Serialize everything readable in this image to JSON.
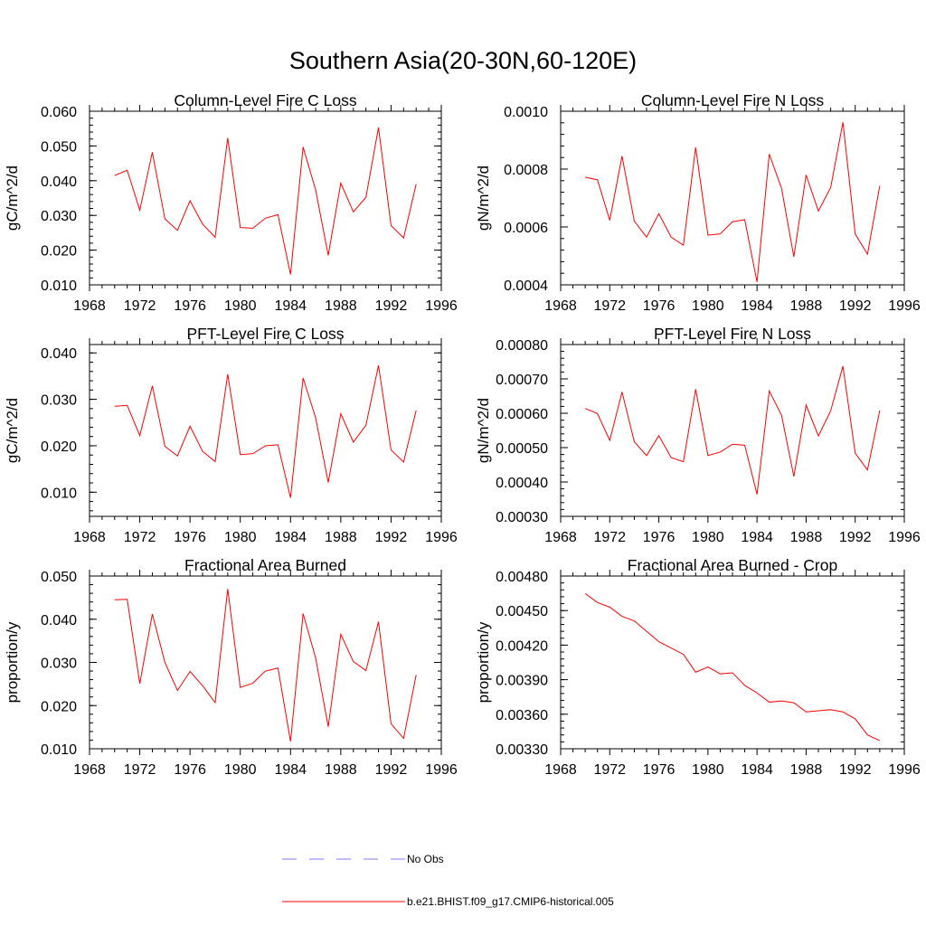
{
  "title": "Southern Asia(20-30N,60-120E)",
  "colors": {
    "series": "#ff0000",
    "obs": "#7c7cff",
    "axis": "#000000"
  },
  "legend": {
    "entries": [
      {
        "label": "No Obs",
        "style": "dashed",
        "color": "#7c7cff"
      },
      {
        "label": "b.e21.BHIST.f09_g17.CMIP6-historical.005",
        "style": "solid",
        "color": "#ff0000"
      }
    ],
    "position": "bottom-center"
  },
  "chart_data": [
    {
      "type": "line",
      "title": "Column-Level Fire C Loss",
      "ylabel": "gC/m^2/d",
      "xlabel": "",
      "xlim": [
        1968,
        1996
      ],
      "ylim": [
        0.01,
        0.06
      ],
      "x_ticks": [
        "1968",
        "1972",
        "1976",
        "1980",
        "1984",
        "1988",
        "1992",
        "1996"
      ],
      "y_ticks": [
        "0.010",
        "0.020",
        "0.030",
        "0.040",
        "0.050",
        "0.060"
      ],
      "series": [
        {
          "name": "b.e21.BHIST.f09_g17.CMIP6-historical.005",
          "x": [
            1970,
            1971,
            1972,
            1973,
            1974,
            1975,
            1976,
            1977,
            1978,
            1979,
            1980,
            1981,
            1982,
            1983,
            1984,
            1985,
            1986,
            1987,
            1988,
            1989,
            1990,
            1991,
            1992,
            1993,
            1994
          ],
          "values": [
            0.0415,
            0.043,
            0.0315,
            0.0482,
            0.029,
            0.0257,
            0.0342,
            0.0275,
            0.0237,
            0.0523,
            0.0265,
            0.0263,
            0.0292,
            0.0302,
            0.013,
            0.0497,
            0.0373,
            0.0185,
            0.0393,
            0.031,
            0.0352,
            0.0553,
            0.0271,
            0.0235,
            0.039
          ]
        }
      ]
    },
    {
      "type": "line",
      "title": "Column-Level Fire N Loss",
      "ylabel": "gN/m^2/d",
      "xlabel": "",
      "xlim": [
        1968,
        1996
      ],
      "ylim": [
        0.0004,
        0.001
      ],
      "x_ticks": [
        "1968",
        "1972",
        "1976",
        "1980",
        "1984",
        "1988",
        "1992",
        "1996"
      ],
      "y_ticks": [
        "0.0004",
        "0.0006",
        "0.0008",
        "0.0010"
      ],
      "series": [
        {
          "name": "b.e21.BHIST.f09_g17.CMIP6-historical.005",
          "x": [
            1970,
            1971,
            1972,
            1973,
            1974,
            1975,
            1976,
            1977,
            1978,
            1979,
            1980,
            1981,
            1982,
            1983,
            1984,
            1985,
            1986,
            1987,
            1988,
            1989,
            1990,
            1991,
            1992,
            1993,
            1994
          ],
          "values": [
            0.000772,
            0.000763,
            0.000623,
            0.000845,
            0.00062,
            0.000565,
            0.000646,
            0.000565,
            0.000537,
            0.000875,
            0.000572,
            0.000576,
            0.000618,
            0.000625,
            0.00041,
            0.000852,
            0.000733,
            0.000497,
            0.00078,
            0.000655,
            0.000736,
            0.000962,
            0.000576,
            0.000506,
            0.000742
          ]
        }
      ]
    },
    {
      "type": "line",
      "title": "PFT-Level Fire C Loss",
      "ylabel": "gC/m^2/d",
      "xlabel": "",
      "xlim": [
        1968,
        1996
      ],
      "ylim": [
        0.0048,
        0.0418
      ],
      "x_ticks": [
        "1968",
        "1972",
        "1976",
        "1980",
        "1984",
        "1988",
        "1992",
        "1996"
      ],
      "y_ticks": [
        "0.010",
        "0.020",
        "0.030",
        "0.040"
      ],
      "series": [
        {
          "name": "b.e21.BHIST.f09_g17.CMIP6-historical.005",
          "x": [
            1970,
            1971,
            1972,
            1973,
            1974,
            1975,
            1976,
            1977,
            1978,
            1979,
            1980,
            1981,
            1982,
            1983,
            1984,
            1985,
            1986,
            1987,
            1988,
            1989,
            1990,
            1991,
            1992,
            1993,
            1994
          ],
          "values": [
            0.0285,
            0.0287,
            0.0222,
            0.0329,
            0.0199,
            0.0178,
            0.0242,
            0.0188,
            0.0166,
            0.0354,
            0.0181,
            0.0183,
            0.02,
            0.0202,
            0.0088,
            0.0346,
            0.026,
            0.0121,
            0.0269,
            0.0208,
            0.0244,
            0.0373,
            0.0191,
            0.0165,
            0.0276
          ]
        }
      ]
    },
    {
      "type": "line",
      "title": "PFT-Level Fire N Loss",
      "ylabel": "gN/m^2/d",
      "xlabel": "",
      "xlim": [
        1968,
        1996
      ],
      "ylim": [
        0.0003,
        0.0008
      ],
      "x_ticks": [
        "1968",
        "1972",
        "1976",
        "1980",
        "1984",
        "1988",
        "1992",
        "1996"
      ],
      "y_ticks": [
        "0.00030",
        "0.00040",
        "0.00050",
        "0.00060",
        "0.00070",
        "0.00080"
      ],
      "series": [
        {
          "name": "b.e21.BHIST.f09_g17.CMIP6-historical.005",
          "x": [
            1970,
            1971,
            1972,
            1973,
            1974,
            1975,
            1976,
            1977,
            1978,
            1979,
            1980,
            1981,
            1982,
            1983,
            1984,
            1985,
            1986,
            1987,
            1988,
            1989,
            1990,
            1991,
            1992,
            1993,
            1994
          ],
          "values": [
            0.000614,
            0.000599,
            0.000521,
            0.000662,
            0.000517,
            0.000477,
            0.000535,
            0.000471,
            0.000459,
            0.00067,
            0.000477,
            0.000487,
            0.00051,
            0.000507,
            0.000364,
            0.000665,
            0.000594,
            0.000416,
            0.000624,
            0.000534,
            0.000607,
            0.000737,
            0.000484,
            0.000435,
            0.000608
          ]
        }
      ]
    },
    {
      "type": "line",
      "title": "Fractional Area Burned",
      "ylabel": "proportion/y",
      "xlabel": "",
      "xlim": [
        1968,
        1996
      ],
      "ylim": [
        0.01,
        0.05
      ],
      "x_ticks": [
        "1968",
        "1972",
        "1976",
        "1980",
        "1984",
        "1988",
        "1992",
        "1996"
      ],
      "y_ticks": [
        "0.010",
        "0.020",
        "0.030",
        "0.040",
        "0.050"
      ],
      "series": [
        {
          "name": "b.e21.BHIST.f09_g17.CMIP6-historical.005",
          "x": [
            1970,
            1971,
            1972,
            1973,
            1974,
            1975,
            1976,
            1977,
            1978,
            1979,
            1980,
            1981,
            1982,
            1983,
            1984,
            1985,
            1986,
            1987,
            1988,
            1989,
            1990,
            1991,
            1992,
            1993,
            1994
          ],
          "values": [
            0.0445,
            0.0446,
            0.0251,
            0.0412,
            0.03,
            0.0235,
            0.0279,
            0.0246,
            0.0207,
            0.047,
            0.0242,
            0.0252,
            0.028,
            0.0287,
            0.0117,
            0.0413,
            0.031,
            0.0151,
            0.0365,
            0.0302,
            0.0281,
            0.0394,
            0.0158,
            0.0124,
            0.0271
          ]
        }
      ]
    },
    {
      "type": "line",
      "title": "Fractional Area Burned - Crop",
      "ylabel": "proportion/y",
      "xlabel": "",
      "xlim": [
        1968,
        1996
      ],
      "ylim": [
        0.0033,
        0.0048
      ],
      "x_ticks": [
        "1968",
        "1972",
        "1976",
        "1980",
        "1984",
        "1988",
        "1992",
        "1996"
      ],
      "y_ticks": [
        "0.00330",
        "0.00360",
        "0.00390",
        "0.00420",
        "0.00450",
        "0.00480"
      ],
      "series": [
        {
          "name": "b.e21.BHIST.f09_g17.CMIP6-historical.005",
          "x": [
            1970,
            1971,
            1972,
            1973,
            1974,
            1975,
            1976,
            1977,
            1978,
            1979,
            1980,
            1981,
            1982,
            1983,
            1984,
            1985,
            1986,
            1987,
            1988,
            1989,
            1990,
            1991,
            1992,
            1993,
            1994
          ],
          "values": [
            0.004648,
            0.00457,
            0.00453,
            0.00445,
            0.00441,
            0.00432,
            0.00423,
            0.004175,
            0.00412,
            0.003965,
            0.00401,
            0.00395,
            0.00396,
            0.00385,
            0.003785,
            0.003705,
            0.003715,
            0.0037,
            0.00362,
            0.00363,
            0.00364,
            0.00362,
            0.00356,
            0.00342,
            0.00337
          ]
        }
      ]
    }
  ]
}
